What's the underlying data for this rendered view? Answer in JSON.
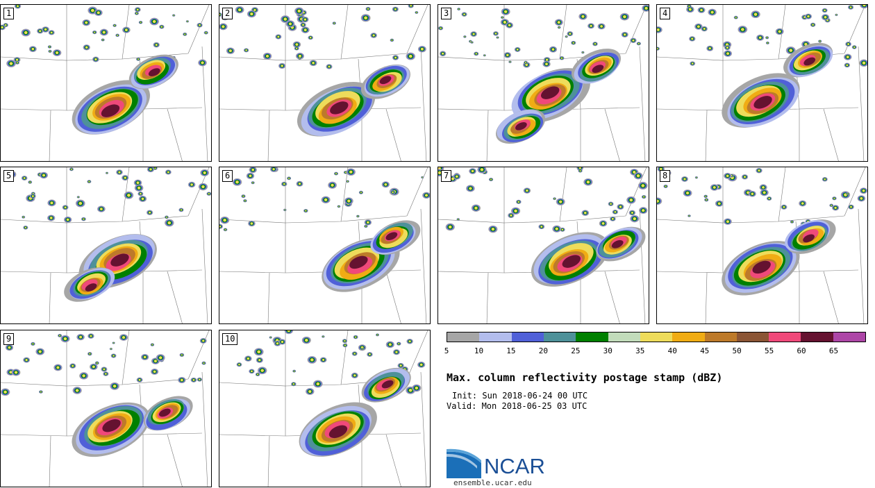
{
  "panels": [
    {
      "label": "1"
    },
    {
      "label": "2"
    },
    {
      "label": "3"
    },
    {
      "label": "4"
    },
    {
      "label": "5"
    },
    {
      "label": "6"
    },
    {
      "label": "7"
    },
    {
      "label": "8"
    },
    {
      "label": "9"
    },
    {
      "label": "10"
    }
  ],
  "colorbar": {
    "colors": [
      "#a6a6a6",
      "#b3bded",
      "#5060d8",
      "#4e9199",
      "#008000",
      "#c2dcbb",
      "#eedc5b",
      "#f0ac14",
      "#bd7a2a",
      "#8b5535",
      "#f0497a",
      "#651230",
      "#ad46a7"
    ],
    "ticks": [
      "5",
      "10",
      "15",
      "20",
      "25",
      "30",
      "35",
      "40",
      "45",
      "50",
      "55",
      "60",
      "65"
    ]
  },
  "title": "Max. column reflectivity postage stamp (dBZ)",
  "init": "Init: Sun 2018-06-24 00 UTC",
  "valid": "Valid: Mon 2018-06-25 03 UTC",
  "logo": {
    "text": "NCAR",
    "colors": {
      "blue": "#1b4f96",
      "light": "#5aa3d8"
    }
  },
  "site": "ensemble.ucar.edu"
}
